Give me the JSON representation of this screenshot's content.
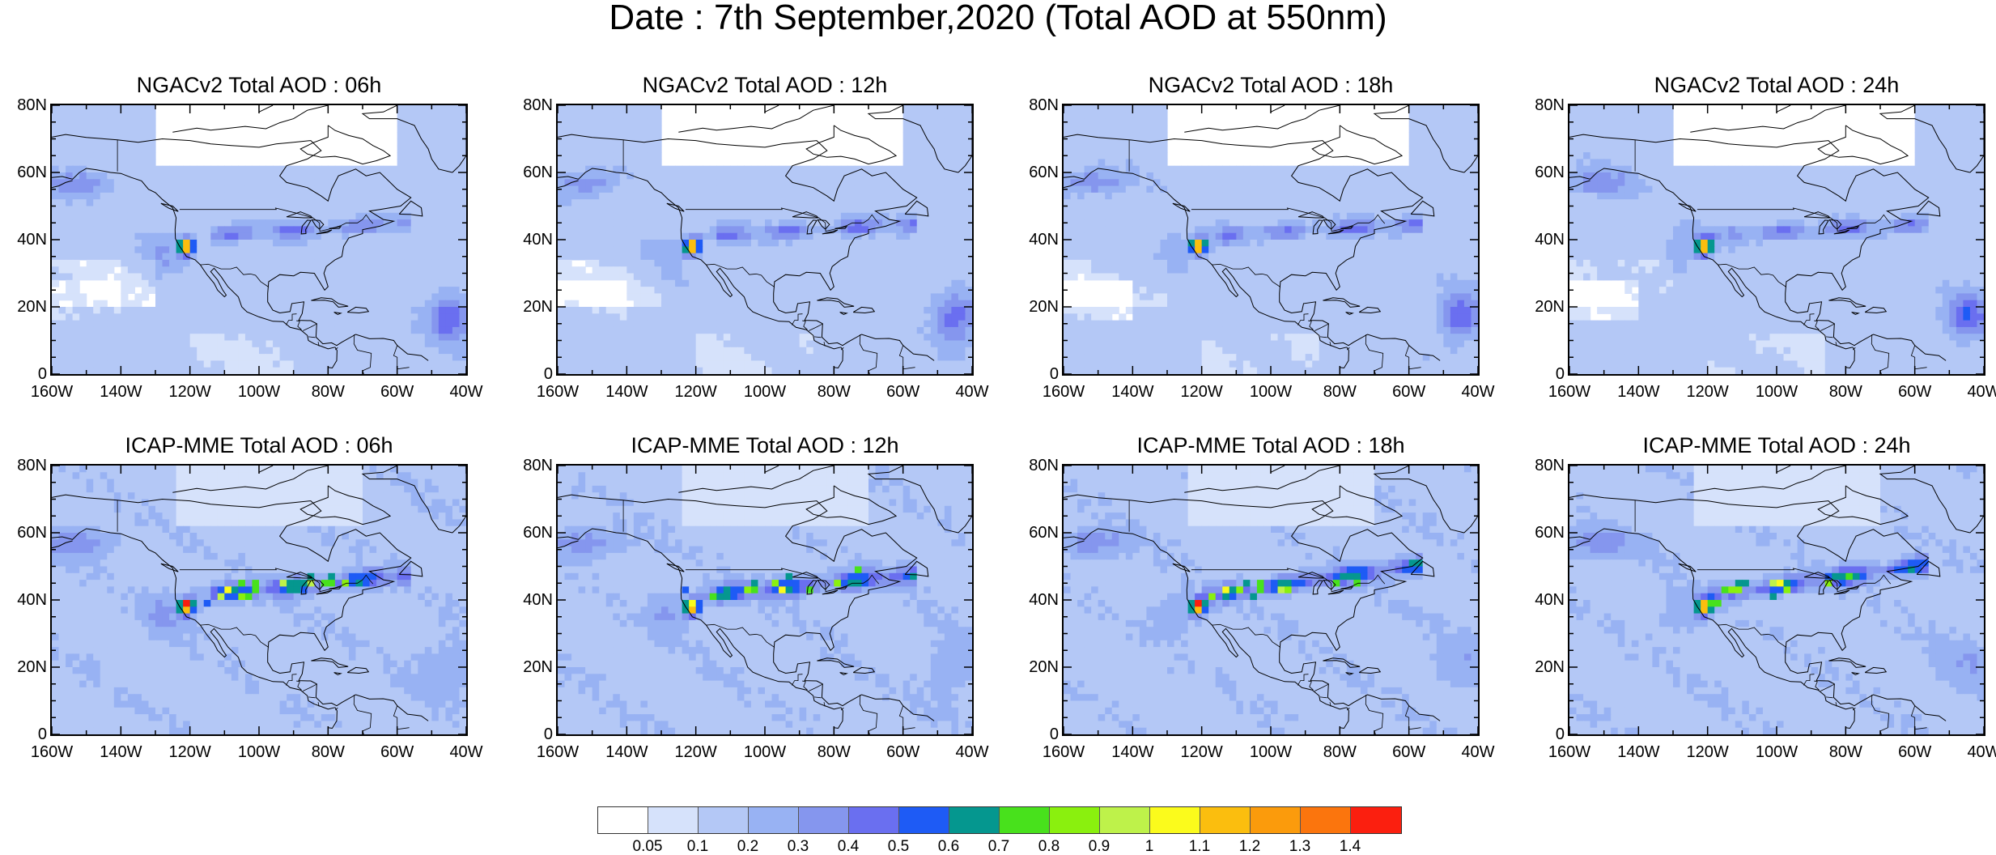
{
  "title": "Date : 7th September,2020 (Total AOD at 550nm)",
  "panels": [
    {
      "title": "NGACv2 Total AOD : 06h",
      "model": "NGACv2",
      "hour": "06h"
    },
    {
      "title": "NGACv2 Total AOD : 12h",
      "model": "NGACv2",
      "hour": "12h"
    },
    {
      "title": "NGACv2 Total AOD : 18h",
      "model": "NGACv2",
      "hour": "18h"
    },
    {
      "title": "NGACv2 Total AOD : 24h",
      "model": "NGACv2",
      "hour": "24h"
    },
    {
      "title": "ICAP-MME Total AOD : 06h",
      "model": "ICAP-MME",
      "hour": "06h"
    },
    {
      "title": "ICAP-MME Total AOD : 12h",
      "model": "ICAP-MME",
      "hour": "12h"
    },
    {
      "title": "ICAP-MME Total AOD : 18h",
      "model": "ICAP-MME",
      "hour": "18h"
    },
    {
      "title": "ICAP-MME Total AOD : 24h",
      "model": "ICAP-MME",
      "hour": "24h"
    }
  ],
  "lat_labels": [
    "80N",
    "60N",
    "40N",
    "20N",
    "0"
  ],
  "lon_labels": [
    "160W",
    "140W",
    "120W",
    "100W",
    "80W",
    "60W",
    "40W"
  ],
  "lon_range": [
    -160,
    -40
  ],
  "lat_range": [
    0,
    80
  ],
  "colorbar": {
    "colors": [
      "#ffffff",
      "#d6e2fb",
      "#b4c8f6",
      "#98b2f3",
      "#8596ee",
      "#6a6ff0",
      "#1e5bf5",
      "#05978f",
      "#48e11c",
      "#8af00e",
      "#bef24a",
      "#fbfb1c",
      "#fbbe0e",
      "#fb9b0c",
      "#fb750d",
      "#fb1f0f"
    ],
    "labels": [
      "0.05",
      "0.1",
      "0.2",
      "0.3",
      "0.4",
      "0.5",
      "0.6",
      "0.7",
      "0.8",
      "0.9",
      "1",
      "1.1",
      "1.2",
      "1.3",
      "1.4"
    ]
  }
}
